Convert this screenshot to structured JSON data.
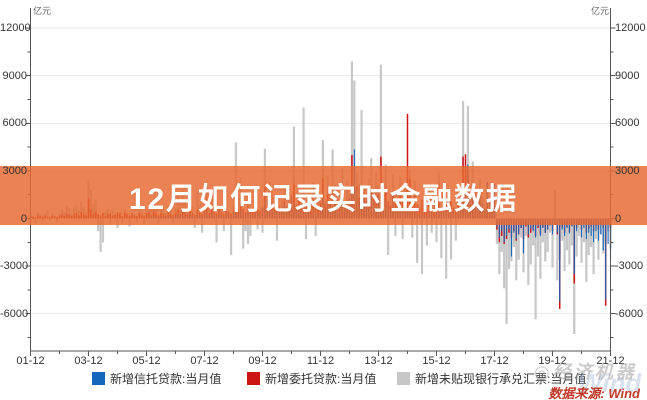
{
  "banner": {
    "title": "12月如何记录实时金融数据",
    "bg_color": "rgba(231,106,50,0.84)"
  },
  "watermark": {
    "brand": "◎经济机器",
    "ghost": "Wind"
  },
  "source": {
    "label": "数据来源: Wind",
    "color": "#c0392b"
  },
  "axes": {
    "unit_left": "亿元",
    "unit_right": "亿元"
  },
  "legend": [
    {
      "label": "新增信托贷款:当月值",
      "color": "#1467bd"
    },
    {
      "label": "新增委托贷款:当月值",
      "color": "#cd1414"
    },
    {
      "label": "新增未贴现银行承兑汇票:当月值",
      "color": "#c7c7c7"
    }
  ],
  "chart_data": {
    "type": "bar",
    "title": "",
    "xlabel": "",
    "ylabel": "亿元",
    "x_start": "2001-12",
    "x_end": "2021-12",
    "x_frequency": "monthly",
    "x_tick_labels": [
      "01-12",
      "03-12",
      "05-12",
      "07-12",
      "09-12",
      "11-12",
      "13-12",
      "15-12",
      "17-12",
      "19-12",
      "21-12"
    ],
    "y_ticks": [
      12000,
      9000,
      6000,
      3000,
      0,
      -3000,
      -6000
    ],
    "ylim": [
      -8300,
      12800
    ],
    "grid": true,
    "legend_position": "bottom",
    "series": [
      {
        "name": "新增信托贷款:当月值",
        "color": "#1467bd",
        "values": [
          0,
          0,
          0,
          0,
          0,
          0,
          0,
          0,
          0,
          0,
          0,
          0,
          0,
          0,
          0,
          0,
          0,
          0,
          0,
          0,
          0,
          0,
          0,
          0,
          0,
          0,
          0,
          0,
          0,
          0,
          0,
          0,
          0,
          0,
          0,
          0,
          0,
          0,
          0,
          0,
          0,
          0,
          0,
          0,
          0,
          0,
          0,
          0,
          0,
          100,
          60,
          120,
          80,
          50,
          110,
          70,
          40,
          130,
          90,
          60,
          150,
          250,
          120,
          300,
          180,
          100,
          280,
          160,
          90,
          320,
          200,
          130,
          350,
          400,
          180,
          350,
          220,
          130,
          300,
          200,
          120,
          380,
          250,
          160,
          420,
          600,
          300,
          550,
          380,
          250,
          500,
          350,
          220,
          580,
          400,
          280,
          650,
          1200,
          500,
          900,
          600,
          400,
          800,
          550,
          350,
          950,
          700,
          450,
          1500,
          900,
          400,
          700,
          450,
          300,
          600,
          400,
          250,
          650,
          420,
          280,
          700,
          1500,
          600,
          1100,
          750,
          500,
          1000,
          650,
          420,
          1200,
          800,
          550,
          1300,
          2100,
          4350,
          1800,
          1200,
          800,
          1500,
          1000,
          650,
          1700,
          1100,
          750,
          1400,
          1800,
          700,
          1200,
          800,
          500,
          1000,
          600,
          400,
          900,
          550,
          350,
          700,
          600,
          250,
          500,
          320,
          200,
          450,
          280,
          180,
          520,
          340,
          220,
          600,
          800,
          350,
          700,
          450,
          280,
          600,
          380,
          250,
          750,
          500,
          1400,
          1600,
          3400,
          1100,
          1800,
          1200,
          750,
          1500,
          950,
          600,
          2300,
          1000,
          650,
          2200,
          -500,
          -1200,
          -800,
          -1500,
          -1100,
          -700,
          -2400,
          -900,
          -1300,
          -1000,
          -600,
          -2200,
          -400,
          -1000,
          -650,
          -800,
          -1200,
          -500,
          -1100,
          -600,
          -900,
          -700,
          -450,
          -1000,
          -300,
          -900,
          -5230,
          -700,
          -1100,
          -600,
          -950,
          -500,
          -3500,
          -800,
          -400,
          -1200,
          -600,
          -1300,
          -900,
          -1100,
          -1500,
          -800,
          -1400,
          -1000,
          -2000,
          -5100,
          -1600,
          -2600
        ]
      },
      {
        "name": "新增委托贷款:当月值",
        "color": "#cd1414",
        "values": [
          150,
          100,
          80,
          200,
          150,
          120,
          180,
          90,
          110,
          160,
          130,
          100,
          170,
          250,
          180,
          300,
          220,
          160,
          280,
          350,
          200,
          400,
          260,
          190,
          1300,
          600,
          300,
          450,
          280,
          200,
          350,
          150,
          250,
          320,
          180,
          220,
          400,
          300,
          150,
          380,
          240,
          180,
          300,
          200,
          160,
          350,
          230,
          170,
          320,
          400,
          220,
          450,
          300,
          200,
          380,
          260,
          180,
          420,
          280,
          210,
          360,
          550,
          300,
          600,
          380,
          260,
          500,
          320,
          240,
          560,
          350,
          280,
          480,
          700,
          350,
          620,
          400,
          300,
          550,
          380,
          280,
          640,
          400,
          320,
          500,
          1500,
          500,
          900,
          600,
          400,
          800,
          550,
          420,
          950,
          600,
          450,
          700,
          2000,
          700,
          1200,
          800,
          550,
          1000,
          700,
          520,
          1100,
          750,
          580,
          900,
          2200,
          800,
          1300,
          900,
          600,
          1100,
          780,
          560,
          1200,
          820,
          640,
          1000,
          2500,
          900,
          1500,
          1000,
          700,
          1300,
          850,
          620,
          1400,
          950,
          720,
          1100,
          4000,
          1400,
          2000,
          1300,
          900,
          1700,
          1100,
          800,
          1800,
          1200,
          950,
          1500,
          3900,
          1200,
          1800,
          1100,
          800,
          1500,
          950,
          700,
          1600,
          1050,
          850,
          6600,
          2500,
          800,
          1400,
          900,
          600,
          1200,
          750,
          550,
          1300,
          850,
          650,
          1000,
          2200,
          700,
          1300,
          850,
          550,
          1100,
          700,
          500,
          1200,
          800,
          3900,
          4050,
          3100,
          900,
          1500,
          800,
          500,
          1000,
          600,
          400,
          900,
          550,
          350,
          700,
          -700,
          -1500,
          -1100,
          -1600,
          -1300,
          -900,
          -1200,
          -800,
          -1400,
          -1000,
          -600,
          -1300,
          -500,
          -1200,
          -900,
          -700,
          -1100,
          -600,
          -1000,
          -550,
          -900,
          -700,
          -400,
          -800,
          -400,
          -1000,
          -5700,
          -550,
          -900,
          -500,
          -850,
          -450,
          -4100,
          -600,
          -350,
          -700,
          -300,
          -900,
          -650,
          -500,
          -800,
          -450,
          -700,
          -400,
          -600,
          -5500,
          -300,
          -600
        ]
      },
      {
        "name": "新增未贴现银行承兑汇票:当月值",
        "color": "#c7c7c7",
        "values": [
          200,
          150,
          -300,
          400,
          250,
          -200,
          300,
          500,
          -150,
          350,
          200,
          -250,
          300,
          600,
          400,
          800,
          650,
          300,
          700,
          900,
          500,
          1000,
          750,
          400,
          2400,
          1800,
          900,
          1200,
          -800,
          -2100,
          -1500,
          400,
          600,
          -400,
          500,
          300,
          -600,
          400,
          -300,
          600,
          350,
          -500,
          450,
          300,
          -200,
          550,
          400,
          -350,
          500,
          700,
          500,
          900,
          600,
          -400,
          750,
          550,
          350,
          800,
          600,
          -300,
          650,
          1500,
          900,
          1800,
          1100,
          700,
          1300,
          800,
          -600,
          1600,
          900,
          -900,
          1200,
          2200,
          1000,
          1500,
          800,
          -1500,
          600,
          400,
          -800,
          1900,
          500,
          -2300,
          800,
          4800,
          1500,
          2600,
          -1900,
          -800,
          -1600,
          -1100,
          200,
          1400,
          -700,
          600,
          -900,
          4400,
          1200,
          2300,
          1600,
          900,
          -1400,
          400,
          1100,
          2000,
          700,
          1900,
          1300,
          5800,
          900,
          2200,
          1100,
          7000,
          -1300,
          600,
          1000,
          2300,
          -1100,
          1400,
          900,
          4950,
          1100,
          2700,
          1800,
          4350,
          2200,
          900,
          1500,
          3200,
          1100,
          2400,
          1600,
          9900,
          8700,
          2900,
          2200,
          6850,
          2000,
          1300,
          2500,
          3800,
          1600,
          2900,
          2100,
          9700,
          1800,
          3400,
          -2300,
          1500,
          2800,
          -1100,
          1900,
          2600,
          -1300,
          2200,
          1700,
          3100,
          -1200,
          2400,
          -2800,
          900,
          -3500,
          600,
          -1700,
          2000,
          -900,
          1200,
          -1500,
          2900,
          -2500,
          1700,
          -3800,
          800,
          -2600,
          500,
          -1400,
          2100,
          1500,
          7400,
          2200,
          7100,
          2100,
          3600,
          1800,
          1200,
          2500,
          1400,
          900,
          2300,
          1000,
          1500,
          600,
          -1600,
          -3500,
          -2100,
          -4400,
          -6660,
          -3200,
          -2700,
          -1800,
          -3900,
          -2600,
          -1200,
          -3400,
          -1100,
          -4200,
          -2900,
          -1700,
          -6350,
          -2400,
          -3800,
          -1500,
          -2700,
          -2100,
          -900,
          -3100,
          1800,
          -3900,
          -2600,
          -1400,
          -3300,
          -2000,
          -2900,
          -1700,
          -7280,
          -2400,
          -1100,
          -2800,
          -1500,
          -4000,
          -2300,
          -1800,
          -3500,
          -1300,
          -2600,
          -1000,
          -2200,
          -1600,
          -800,
          -1900
        ]
      }
    ]
  }
}
